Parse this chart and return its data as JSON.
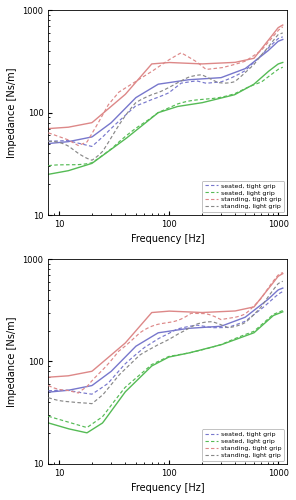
{
  "xlabel": "Frequency [Hz]",
  "ylabel": "Impedance [Ns/m]",
  "xlim": [
    8,
    1200
  ],
  "ylim": [
    10,
    1000
  ],
  "legend_labels": [
    "seated, tight grip",
    "seated, light grip",
    "standing, tight grip",
    "standing, light grip"
  ],
  "colors": {
    "seated_tight": "#7777cc",
    "seated_light": "#55bb55",
    "standing_tight": "#dd8888",
    "standing_light": "#888888"
  }
}
